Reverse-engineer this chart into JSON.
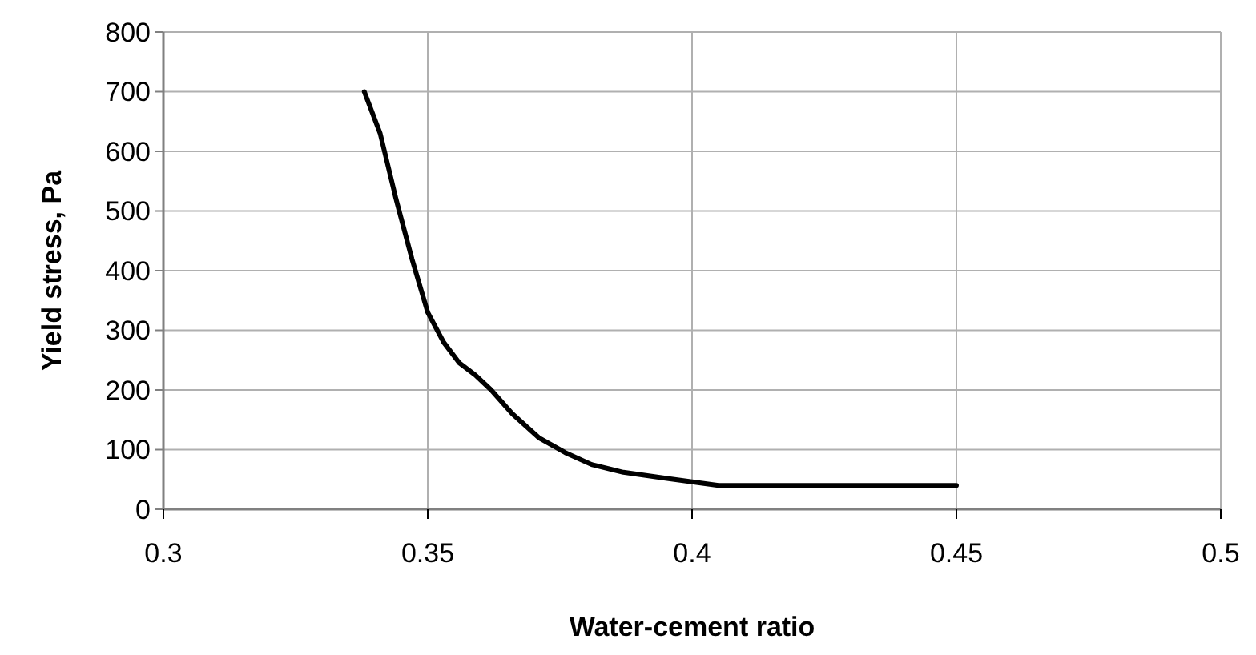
{
  "chart_data": {
    "type": "line",
    "xlabel": "Water-cement ratio",
    "ylabel": "Yield stress, Pa",
    "x": [
      0.338,
      0.341,
      0.344,
      0.347,
      0.35,
      0.353,
      0.356,
      0.359,
      0.362,
      0.366,
      0.371,
      0.376,
      0.381,
      0.387,
      0.395,
      0.4,
      0.405,
      0.45
    ],
    "series": [
      {
        "color": "#000000",
        "values": [
          700,
          630,
          520,
          420,
          330,
          280,
          245,
          225,
          200,
          160,
          120,
          95,
          75,
          62,
          52,
          46,
          40,
          40
        ]
      }
    ],
    "xlim": [
      0.3,
      0.5
    ],
    "xticks": [
      0.3,
      0.35,
      0.4,
      0.45,
      0.5
    ],
    "ylim": [
      0,
      800
    ],
    "yticks": [
      0,
      100,
      200,
      300,
      400,
      500,
      600,
      700,
      800
    ],
    "grid": true,
    "marker": "none",
    "line_style": "solid"
  }
}
